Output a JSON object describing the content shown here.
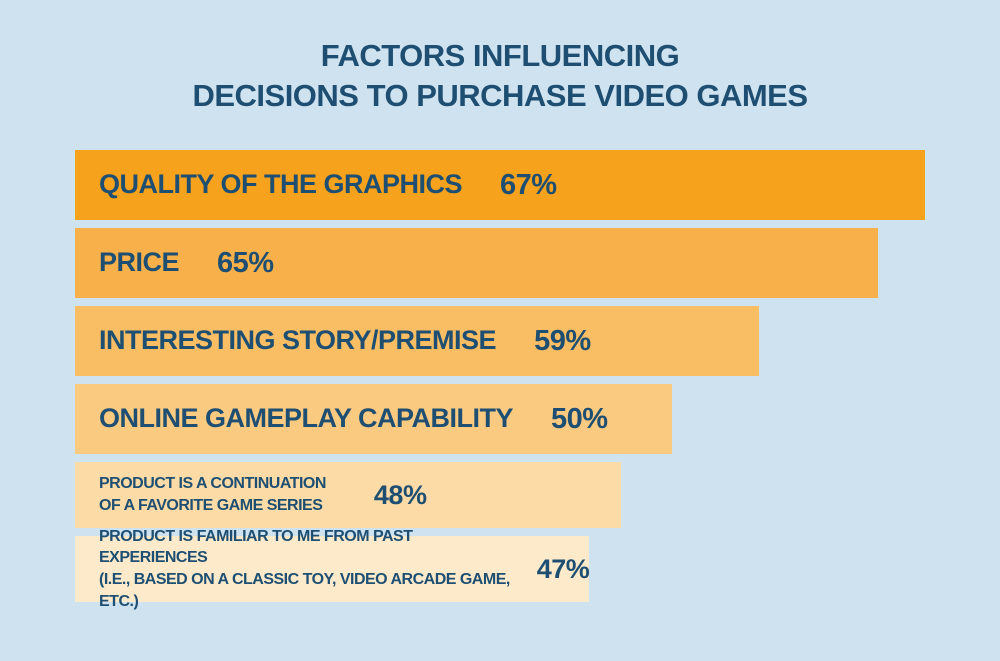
{
  "title": {
    "line1": "FACTORS INFLUENCING",
    "line2": "DECISIONS TO PURCHASE VIDEO GAMES"
  },
  "colors": {
    "background": "#cfe2f0",
    "text": "#1e4f72"
  },
  "chart_data": {
    "type": "bar",
    "orientation": "horizontal",
    "title": "FACTORS INFLUENCING DECISIONS TO PURCHASE VIDEO GAMES",
    "categories": [
      "QUALITY OF THE GRAPHICS",
      "PRICE",
      "INTERESTING STORY/PREMISE",
      "ONLINE GAMEPLAY CAPABILITY",
      "PRODUCT IS A CONTINUATION OF A FAVORITE GAME SERIES",
      "PRODUCT IS FAMILIAR TO ME FROM PAST EXPERIENCES (I.E., BASED ON A CLASSIC TOY, VIDEO ARCADE GAME, ETC.)"
    ],
    "values": [
      67,
      65,
      59,
      50,
      48,
      47
    ],
    "value_unit": "%",
    "xlim": [
      0,
      67
    ],
    "grid": false,
    "legend": false,
    "rows": [
      {
        "label": "QUALITY OF THE GRAPHICS",
        "value": 67,
        "value_label": "67%",
        "width_pct": 100,
        "color": "#f6a21c"
      },
      {
        "label": "PRICE",
        "value": 65,
        "value_label": "65%",
        "width_pct": 94.5,
        "color": "#f8b14a"
      },
      {
        "label": "INTERESTING STORY/PREMISE",
        "value": 59,
        "value_label": "59%",
        "width_pct": 80.5,
        "color": "#f9bd63"
      },
      {
        "label": "ONLINE GAMEPLAY CAPABILITY",
        "value": 50,
        "value_label": "50%",
        "width_pct": 70.2,
        "color": "#fbca81"
      },
      {
        "label": "PRODUCT IS A CONTINUATION\nOF A FAVORITE GAME SERIES",
        "value": 48,
        "value_label": "48%",
        "width_pct": 64.2,
        "color": "#fcdba7"
      },
      {
        "label": "PRODUCT IS FAMILIAR TO ME FROM PAST EXPERIENCES\n(I.E., BASED ON A CLASSIC TOY, VIDEO ARCADE GAME, ETC.)",
        "value": 47,
        "value_label": "47%",
        "width_pct": 60.5,
        "color": "#fdeacb"
      }
    ]
  }
}
